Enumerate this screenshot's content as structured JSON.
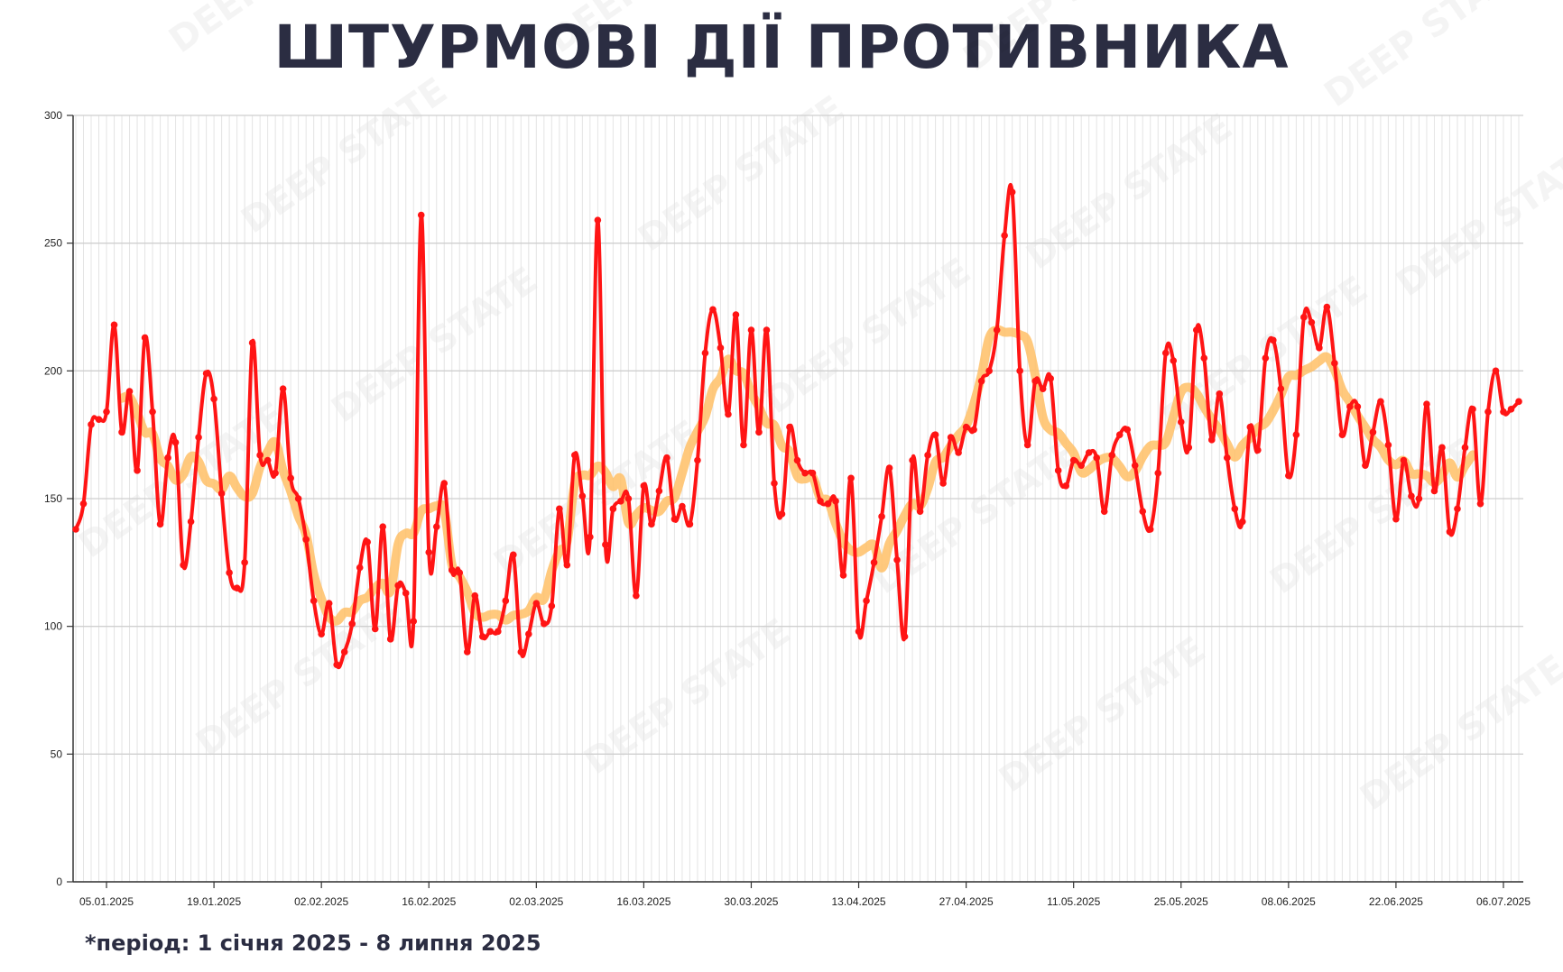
{
  "title": "ШТУРМОВІ ДІЇ ПРОТИВНИКА",
  "footnote": "*період: 1 січня 2025 - 8 липня 2025",
  "watermark": "DEEP STATE",
  "chart_data": {
    "type": "line",
    "title": "ШТУРМОВІ ДІЇ ПРОТИВНИКА",
    "x_range": [
      "2025-01-01",
      "2025-07-08"
    ],
    "frequency": "daily",
    "xtick_labels": [
      "05.01.2025",
      "19.01.2025",
      "02.02.2025",
      "16.02.2025",
      "02.03.2025",
      "16.03.2025",
      "30.03.2025",
      "13.04.2025",
      "27.04.2025",
      "11.05.2025",
      "25.05.2025",
      "08.06.2025",
      "22.06.2025",
      "06.07.2025"
    ],
    "yticks": [
      0,
      50,
      100,
      150,
      200,
      250,
      300
    ],
    "ylim": [
      0,
      300
    ],
    "grid": true,
    "legend": "none",
    "series": [
      {
        "color": "#ff1414",
        "markers": true,
        "values": [
          138,
          148,
          179,
          181,
          184,
          218,
          176,
          192,
          161,
          213,
          184,
          140,
          166,
          172,
          124,
          141,
          174,
          199,
          189,
          152,
          121,
          115,
          125,
          211,
          167,
          165,
          160,
          193,
          158,
          150,
          134,
          110,
          97,
          109,
          85,
          90,
          101,
          123,
          133,
          99,
          139,
          95,
          116,
          113,
          102,
          261,
          129,
          139,
          156,
          122,
          121,
          90,
          112,
          96,
          98,
          98,
          110,
          128,
          90,
          97,
          109,
          101,
          108,
          146,
          124,
          167,
          151,
          135,
          259,
          132,
          146,
          149,
          150,
          112,
          155,
          140,
          153,
          166,
          142,
          147,
          140,
          165,
          207,
          224,
          209,
          183,
          222,
          171,
          216,
          176,
          216,
          156,
          144,
          178,
          165,
          160,
          160,
          149,
          148,
          149,
          120,
          158,
          98,
          110,
          125,
          143,
          162,
          126,
          96,
          165,
          145,
          167,
          175,
          156,
          174,
          168,
          178,
          177,
          196,
          200,
          216,
          253,
          270,
          200,
          171,
          196,
          193,
          197,
          161,
          155,
          165,
          163,
          168,
          166,
          145,
          167,
          175,
          177,
          163,
          145,
          138,
          160,
          207,
          204,
          180,
          170,
          216,
          205,
          173,
          191,
          166,
          146,
          141,
          178,
          169,
          205,
          212,
          193,
          159,
          175,
          221,
          219,
          209,
          225,
          203,
          175,
          186,
          186,
          163,
          176,
          188,
          171,
          142,
          165,
          151,
          150,
          187,
          153,
          170,
          137,
          146,
          170,
          185,
          148,
          184,
          200,
          184,
          185,
          188
        ]
      }
    ],
    "trend": {
      "type": "moving_average",
      "window": 7,
      "color": "#ffbf66"
    }
  }
}
